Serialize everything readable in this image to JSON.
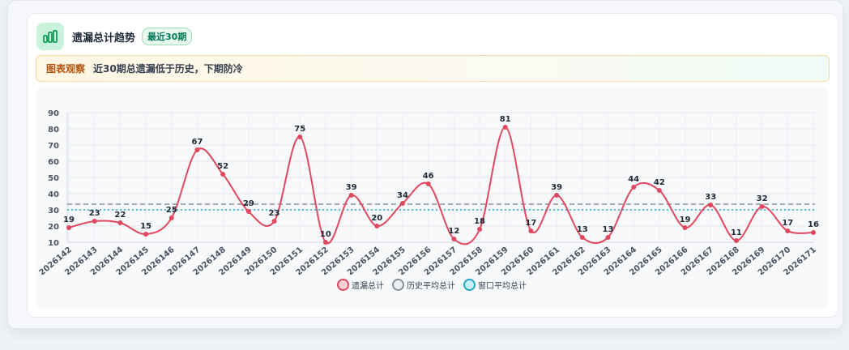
{
  "header": {
    "title": "遗漏总计趋势",
    "badge": "最近30期"
  },
  "observation": {
    "label": "图表观察",
    "text": "近30期总遗漏低于历史，下期防冷"
  },
  "colors": {
    "series": "#e0485f",
    "history_avg": "#8a8f98",
    "window_avg": "#22a7c4"
  },
  "legend": {
    "series_label": "遗漏总计",
    "history_label": "历史平均总计",
    "window_label": "窗口平均总计"
  },
  "chart_data": {
    "type": "line",
    "categories": [
      "2026142",
      "2026143",
      "2026144",
      "2026145",
      "2026146",
      "2026147",
      "2026148",
      "2026149",
      "2026150",
      "2026151",
      "2026152",
      "2026153",
      "2026154",
      "2026155",
      "2026156",
      "2026157",
      "2026158",
      "2026159",
      "2026160",
      "2026161",
      "2026162",
      "2026163",
      "2026164",
      "2026165",
      "2026166",
      "2026167",
      "2026168",
      "2026169",
      "2026170",
      "2026171"
    ],
    "series": [
      {
        "name": "遗漏总计",
        "values": [
          19,
          23,
          22,
          15,
          25,
          67,
          52,
          29,
          23,
          75,
          10,
          39,
          20,
          34,
          46,
          12,
          18,
          81,
          17,
          39,
          13,
          13,
          44,
          42,
          19,
          33,
          11,
          32,
          17,
          16
        ]
      }
    ],
    "reference_lines": [
      {
        "name": "历史平均总计",
        "value": 33.5,
        "style": "dashed"
      },
      {
        "name": "窗口平均总计",
        "value": 30,
        "style": "dotted"
      }
    ],
    "ylim": [
      10,
      90
    ],
    "yticks": [
      10,
      20,
      30,
      40,
      50,
      60,
      70,
      80,
      90
    ],
    "grid": true,
    "legend_position": "bottom"
  }
}
